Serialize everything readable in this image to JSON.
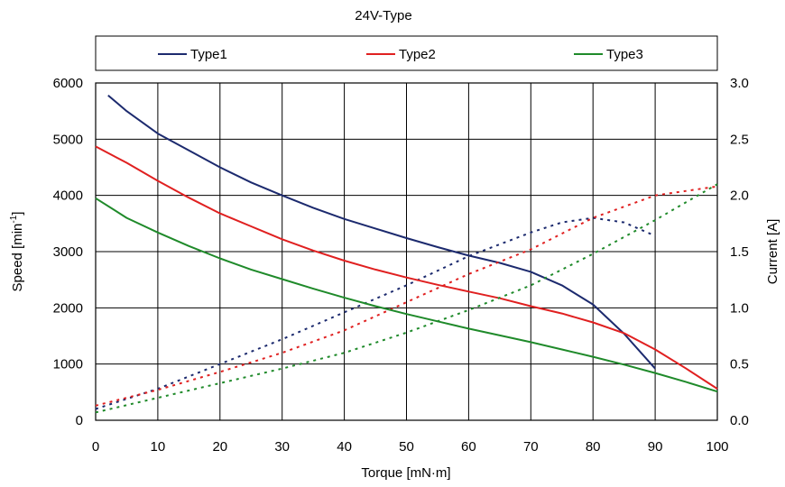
{
  "chart_data": {
    "type": "line",
    "title": "24V-Type",
    "xlabel": "Torque [mN·m]",
    "ylabel": "Speed [min",
    "ylabel_sup": "-1",
    "ylabel_end": "]",
    "y2label": "Current [A]",
    "xlim": [
      0,
      100
    ],
    "ylim": [
      0,
      6000
    ],
    "y2lim": [
      0,
      3.0
    ],
    "x_ticks": [
      "0",
      "10",
      "20",
      "30",
      "40",
      "50",
      "60",
      "70",
      "80",
      "90",
      "100"
    ],
    "y_ticks": [
      "0",
      "1000",
      "2000",
      "3000",
      "4000",
      "5000",
      "6000"
    ],
    "y2_ticks": [
      "0.0",
      "0.5",
      "1.0",
      "1.5",
      "2.0",
      "2.5",
      "3.0"
    ],
    "grid": true,
    "legend_position": "top",
    "series": [
      {
        "name": "Type1",
        "color": "#1c2a6e",
        "speed": [
          [
            2,
            5780
          ],
          [
            5,
            5500
          ],
          [
            10,
            5100
          ],
          [
            15,
            4800
          ],
          [
            20,
            4500
          ],
          [
            25,
            4230
          ],
          [
            30,
            4000
          ],
          [
            35,
            3780
          ],
          [
            40,
            3580
          ],
          [
            45,
            3410
          ],
          [
            50,
            3240
          ],
          [
            55,
            3080
          ],
          [
            60,
            2930
          ],
          [
            65,
            2800
          ],
          [
            70,
            2640
          ],
          [
            75,
            2400
          ],
          [
            80,
            2060
          ],
          [
            85,
            1540
          ],
          [
            90,
            920
          ]
        ],
        "current": [
          [
            0,
            0.1
          ],
          [
            10,
            0.28
          ],
          [
            20,
            0.5
          ],
          [
            30,
            0.72
          ],
          [
            40,
            0.96
          ],
          [
            50,
            1.2
          ],
          [
            60,
            1.46
          ],
          [
            70,
            1.67
          ],
          [
            75,
            1.76
          ],
          [
            80,
            1.8
          ],
          [
            85,
            1.76
          ],
          [
            90,
            1.64
          ]
        ]
      },
      {
        "name": "Type2",
        "color": "#e02020",
        "speed": [
          [
            0,
            4870
          ],
          [
            5,
            4580
          ],
          [
            10,
            4260
          ],
          [
            15,
            3960
          ],
          [
            20,
            3680
          ],
          [
            25,
            3450
          ],
          [
            30,
            3220
          ],
          [
            35,
            3020
          ],
          [
            40,
            2840
          ],
          [
            45,
            2680
          ],
          [
            50,
            2540
          ],
          [
            55,
            2410
          ],
          [
            60,
            2290
          ],
          [
            65,
            2170
          ],
          [
            70,
            2030
          ],
          [
            75,
            1900
          ],
          [
            80,
            1740
          ],
          [
            85,
            1550
          ],
          [
            90,
            1260
          ],
          [
            95,
            920
          ],
          [
            100,
            560
          ]
        ],
        "current": [
          [
            0,
            0.13
          ],
          [
            10,
            0.27
          ],
          [
            20,
            0.43
          ],
          [
            30,
            0.6
          ],
          [
            40,
            0.8
          ],
          [
            50,
            1.05
          ],
          [
            60,
            1.3
          ],
          [
            70,
            1.52
          ],
          [
            80,
            1.8
          ],
          [
            90,
            2.0
          ],
          [
            100,
            2.08
          ]
        ]
      },
      {
        "name": "Type3",
        "color": "#1f8a2a",
        "speed": [
          [
            0,
            3950
          ],
          [
            5,
            3600
          ],
          [
            10,
            3340
          ],
          [
            15,
            3100
          ],
          [
            20,
            2880
          ],
          [
            25,
            2680
          ],
          [
            30,
            2510
          ],
          [
            35,
            2340
          ],
          [
            40,
            2180
          ],
          [
            45,
            2030
          ],
          [
            50,
            1890
          ],
          [
            55,
            1760
          ],
          [
            60,
            1630
          ],
          [
            65,
            1510
          ],
          [
            70,
            1390
          ],
          [
            75,
            1260
          ],
          [
            80,
            1130
          ],
          [
            85,
            990
          ],
          [
            90,
            840
          ],
          [
            95,
            680
          ],
          [
            100,
            510
          ]
        ],
        "current": [
          [
            0,
            0.07
          ],
          [
            10,
            0.2
          ],
          [
            20,
            0.33
          ],
          [
            30,
            0.46
          ],
          [
            40,
            0.6
          ],
          [
            50,
            0.78
          ],
          [
            60,
            0.98
          ],
          [
            70,
            1.2
          ],
          [
            80,
            1.48
          ],
          [
            90,
            1.78
          ],
          [
            100,
            2.1
          ]
        ]
      }
    ]
  }
}
